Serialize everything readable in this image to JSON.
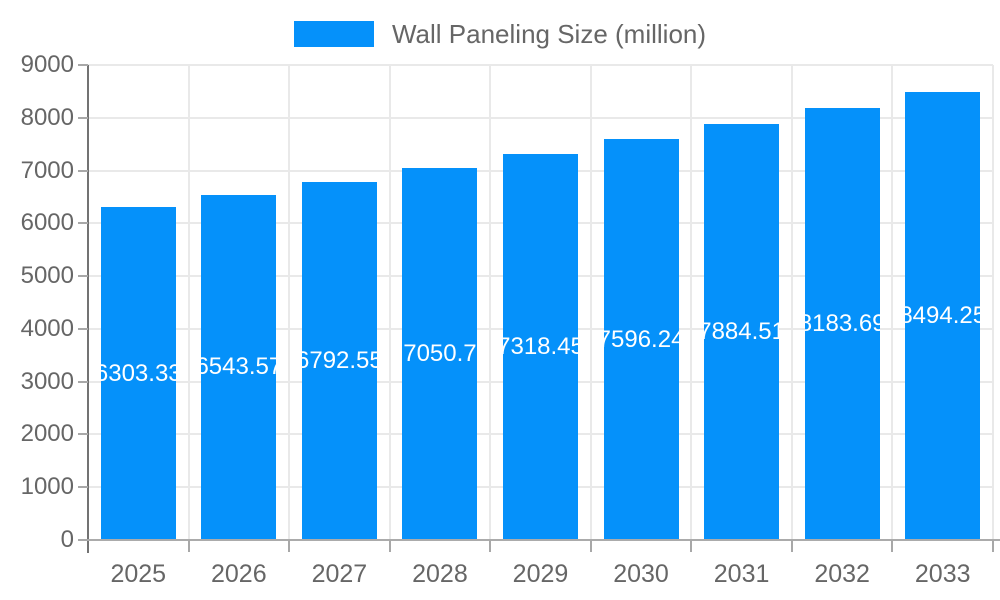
{
  "chart": {
    "legend": {
      "label": "Wall Paneling Size (million)"
    },
    "colors": {
      "bar": "#0591fa",
      "bar_label_text": "#ffffff",
      "axis_text": "#666666",
      "grid": "#e9e9e9",
      "y_axis_line": "#737373",
      "x_axis_line": "#ababab",
      "tick": "#a8a8a8"
    }
  },
  "chart_data": {
    "type": "bar",
    "title": "Wall Paneling Size (million)",
    "categories": [
      "2025",
      "2026",
      "2027",
      "2028",
      "2029",
      "2030",
      "2031",
      "2032",
      "2033"
    ],
    "series": [
      {
        "name": "Wall Paneling Size (million)",
        "values": [
          6303.33,
          6543.57,
          6792.55,
          7050.7,
          7318.45,
          7596.24,
          7884.51,
          8183.69,
          8494.25
        ],
        "data_labels": [
          "6303.33",
          "6543.57",
          "6792.55",
          "7050.7",
          "7318.45",
          "7596.24",
          "7884.51",
          "8183.69",
          "8494.25"
        ]
      }
    ],
    "xlabel": "",
    "ylabel": "",
    "ylim": [
      0,
      9000
    ],
    "yticks": [
      0,
      1000,
      2000,
      3000,
      4000,
      5000,
      6000,
      7000,
      8000,
      9000
    ],
    "grid": true,
    "legend_position": "top-center",
    "data_label_position": "bar-center"
  }
}
